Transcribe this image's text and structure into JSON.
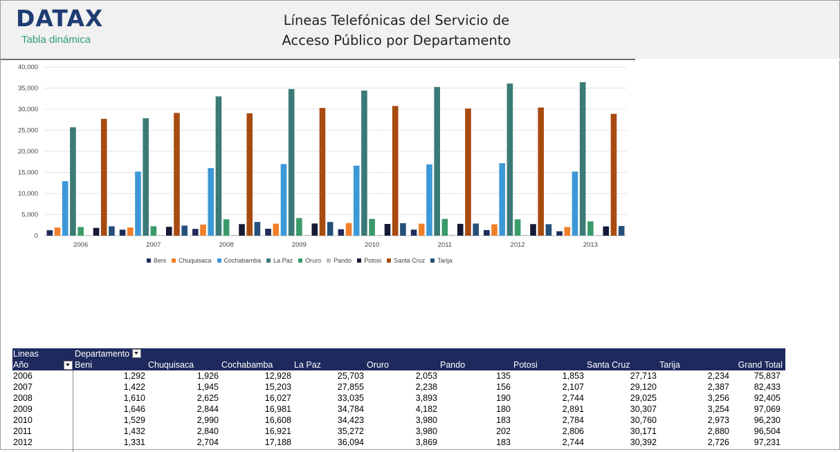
{
  "header": {
    "logo": "DATAX",
    "logo_sub": "Tabla dinámica",
    "title_line1": "Líneas Telefónicas del Servicio de",
    "title_line2": "Acceso Público por Departamento"
  },
  "colors": {
    "Beni": "#1f2d5c",
    "Chuquisaca": "#f07f2a",
    "Cochabamba": "#3c98d6",
    "La Paz": "#3b7a77",
    "Oruro": "#3a9a6a",
    "Pando": "#bdbdbd",
    "Potosi": "#141a36",
    "Santa Cruz": "#a84b11",
    "Tarija": "#25507a"
  },
  "chart_data": {
    "type": "bar",
    "categories": [
      "2006",
      "2007",
      "2008",
      "2009",
      "2010",
      "2011",
      "2012",
      "2013"
    ],
    "ylim": [
      0,
      40000
    ],
    "yticks": [
      "0",
      "5,000",
      "10,000",
      "15,000",
      "20,000",
      "25,000",
      "30,000",
      "35,000",
      "40,000"
    ],
    "grid": true,
    "legend_position": "bottom",
    "series": [
      {
        "name": "Beni",
        "values": [
          1292,
          1422,
          1610,
          1646,
          1529,
          1432,
          1331,
          1050
        ]
      },
      {
        "name": "Chuquisaca",
        "values": [
          1926,
          1945,
          2625,
          2844,
          2990,
          2840,
          2704,
          2050
        ]
      },
      {
        "name": "Cochabamba",
        "values": [
          12928,
          15203,
          16027,
          16981,
          16608,
          16921,
          17188,
          15200
        ]
      },
      {
        "name": "La Paz",
        "values": [
          25703,
          27855,
          33035,
          34784,
          34423,
          35272,
          36094,
          36400
        ]
      },
      {
        "name": "Oruro",
        "values": [
          2053,
          2238,
          3893,
          4182,
          3980,
          3980,
          3869,
          3400
        ]
      },
      {
        "name": "Pando",
        "values": [
          135,
          156,
          190,
          180,
          183,
          202,
          183,
          150
        ]
      },
      {
        "name": "Potosi",
        "values": [
          1853,
          2107,
          2744,
          2891,
          2784,
          2806,
          2744,
          2200
        ]
      },
      {
        "name": "Santa Cruz",
        "values": [
          27713,
          29120,
          29025,
          30307,
          30760,
          30171,
          30392,
          28900
        ]
      },
      {
        "name": "Tarija",
        "values": [
          2234,
          2387,
          3256,
          3254,
          2973,
          2880,
          2726,
          2300
        ]
      }
    ]
  },
  "pivot": {
    "corner_label": "Lineas",
    "row_field": "Año",
    "column_field": "Departamento",
    "columns": [
      "Beni",
      "Chuquisaca",
      "Cochabamba",
      "La Paz",
      "Oruro",
      "Pando",
      "Potosi",
      "Santa Cruz",
      "Tarija",
      "Grand Total"
    ],
    "rows": [
      {
        "year": "2006",
        "values": [
          "1,292",
          "1,926",
          "12,928",
          "25,703",
          "2,053",
          "135",
          "1,853",
          "27,713",
          "2,234",
          "75,837"
        ]
      },
      {
        "year": "2007",
        "values": [
          "1,422",
          "1,945",
          "15,203",
          "27,855",
          "2,238",
          "156",
          "2,107",
          "29,120",
          "2,387",
          "82,433"
        ]
      },
      {
        "year": "2008",
        "values": [
          "1,610",
          "2,625",
          "16,027",
          "33,035",
          "3,893",
          "190",
          "2,744",
          "29,025",
          "3,256",
          "92,405"
        ]
      },
      {
        "year": "2009",
        "values": [
          "1,646",
          "2,844",
          "16,981",
          "34,784",
          "4,182",
          "180",
          "2,891",
          "30,307",
          "3,254",
          "97,069"
        ]
      },
      {
        "year": "2010",
        "values": [
          "1,529",
          "2,990",
          "16,608",
          "34,423",
          "3,980",
          "183",
          "2,784",
          "30,760",
          "2,973",
          "96,230"
        ]
      },
      {
        "year": "2011",
        "values": [
          "1,432",
          "2,840",
          "16,921",
          "35,272",
          "3,980",
          "202",
          "2,806",
          "30,171",
          "2,880",
          "96,504"
        ]
      },
      {
        "year": "2012",
        "values": [
          "1,331",
          "2,704",
          "17,188",
          "36,094",
          "3,869",
          "183",
          "2,744",
          "30,392",
          "2,726",
          "97,231"
        ]
      }
    ]
  }
}
